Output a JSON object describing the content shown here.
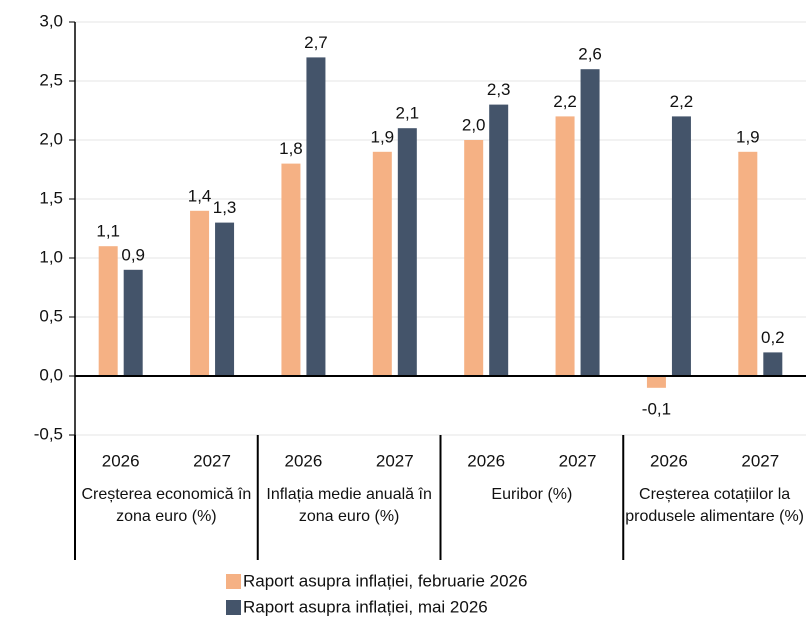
{
  "chart_data": {
    "type": "bar",
    "groups": [
      {
        "label": "Creșterea economică în zona euro (%)",
        "categories": [
          "2026",
          "2027"
        ]
      },
      {
        "label": "Inflația medie anuală în zona euro (%)",
        "categories": [
          "2026",
          "2027"
        ]
      },
      {
        "label": "Euribor (%)",
        "categories": [
          "2026",
          "2027"
        ]
      },
      {
        "label": "Creșterea cotațiilor la produsele alimentare (%)",
        "categories": [
          "2026",
          "2027"
        ]
      }
    ],
    "series": [
      {
        "name": "Raport asupra inflației, februarie 2026",
        "color": "#f5b184",
        "values": [
          1.1,
          1.4,
          1.8,
          1.9,
          2.0,
          2.2,
          -0.1,
          1.9
        ],
        "value_labels": [
          "1,1",
          "1,4",
          "1,8",
          "1,9",
          "2,0",
          "2,2",
          "-0,1",
          "1,9"
        ]
      },
      {
        "name": "Raport asupra inflației, mai 2026",
        "color": "#44546a",
        "values": [
          0.9,
          1.3,
          2.7,
          2.1,
          2.3,
          2.6,
          2.2,
          0.2
        ],
        "value_labels": [
          "0,9",
          "1,3",
          "2,7",
          "2,1",
          "2,3",
          "2,6",
          "2,2",
          "0,2"
        ]
      }
    ],
    "ylim": [
      -0.5,
      3.0
    ],
    "yticks": [
      {
        "value": -0.5,
        "label": "-0,5"
      },
      {
        "value": 0,
        "label": "0,0"
      },
      {
        "value": 0.5,
        "label": "0,5"
      },
      {
        "value": 1,
        "label": "1,0"
      },
      {
        "value": 1.5,
        "label": "1,5"
      },
      {
        "value": 2,
        "label": "2,0"
      },
      {
        "value": 2.5,
        "label": "2,5"
      },
      {
        "value": 3,
        "label": "3,0"
      }
    ],
    "grid": true
  }
}
